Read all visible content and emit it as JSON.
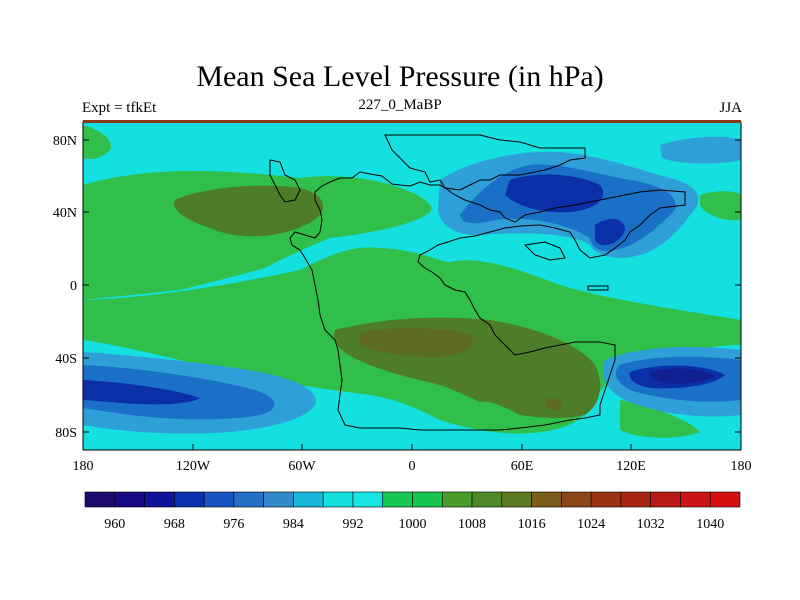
{
  "title": "Mean Sea Level Pressure (in hPa)",
  "left_label": "Expt = tfkEt",
  "center_label": "227_0_MaBP",
  "right_label": "JJA",
  "lat_labels": [
    "80N",
    "40N",
    "0",
    "40S",
    "80S"
  ],
  "lon_labels": [
    "180",
    "120W",
    "60W",
    "0",
    "60E",
    "120E",
    "180"
  ],
  "colorbar": {
    "colors": [
      "#1e0a6e",
      "#180a85",
      "#10139b",
      "#0b2fae",
      "#1755c3",
      "#2470c6",
      "#2f8bcb",
      "#17b6d8",
      "#14e0e0",
      "#16e5e1",
      "#17c855",
      "#16c450",
      "#4a9c2a",
      "#4f8a28",
      "#5e7b22",
      "#7a5d1b",
      "#8c4518",
      "#9a3414",
      "#a72512",
      "#b81a14",
      "#cc1214",
      "#d50e10"
    ],
    "tick_labels": [
      "960",
      "968",
      "976",
      "984",
      "992",
      "1000",
      "1008",
      "1016",
      "1024",
      "1032",
      "1040"
    ]
  },
  "fields": {
    "background": "#14e0e0",
    "green": "#2fbf4a",
    "olive": "#4e7d2a",
    "blue_light": "#2f9fd8",
    "blue_mid": "#1a6fc6",
    "blue_dark": "#0a2fa8",
    "navy": "#102090",
    "frame_top": "#8a3a1a"
  }
}
